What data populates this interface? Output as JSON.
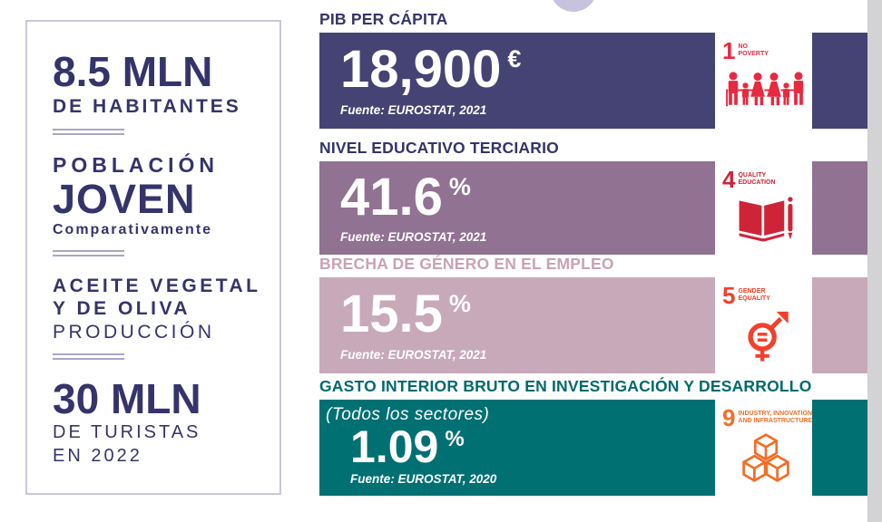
{
  "left_panel": {
    "text_color": "#35346a",
    "border_color": "#c9c8d9",
    "divider_color": "#a9a7c2",
    "blocks": [
      {
        "lines": [
          {
            "text": "8.5 MLN",
            "style": "big"
          },
          {
            "text": "DE HABITANTES",
            "style": "sub-bold"
          }
        ]
      },
      {
        "lines": [
          {
            "text": "POBLACIÓN",
            "style": "pre"
          },
          {
            "text": "JOVEN",
            "style": "big2"
          },
          {
            "text": "Comparativamente",
            "style": "small"
          }
        ]
      },
      {
        "lines": [
          {
            "text": "ACEITE VEGETAL",
            "style": "mid-bold"
          },
          {
            "text": "Y DE OLIVA",
            "style": "mid-bold"
          },
          {
            "text": "PRODUCCIÓN",
            "style": "mid-light"
          }
        ]
      },
      {
        "lines": [
          {
            "text": "30 MLN",
            "style": "big"
          },
          {
            "text": "DE TURISTAS",
            "style": "sub-light"
          },
          {
            "text": "EN 2022",
            "style": "sub-light"
          }
        ]
      }
    ]
  },
  "cards": [
    {
      "title": "PIB PER CÁPITA",
      "title_color": "#35346a",
      "bg": "#454373",
      "note": "",
      "value": "18,900",
      "unit": "€",
      "source": "Fuente: EUROSTAT, 2021",
      "sdg": {
        "number": "1",
        "label_lines": [
          "NO",
          "POVERTY"
        ],
        "color": "#e8293f",
        "icon": "no-poverty"
      }
    },
    {
      "title": "NIVEL EDUCATIVO TERCIARIO",
      "title_color": "#35346a",
      "bg": "#917292",
      "note": "",
      "value": "41.6",
      "unit": "%",
      "source": "Fuente: EUROSTAT, 2021",
      "sdg": {
        "number": "4",
        "label_lines": [
          "QUALITY",
          "EDUCATION"
        ],
        "color": "#cf2438",
        "icon": "quality-education"
      }
    },
    {
      "title": "BRECHA DE GÉNERO EN EL EMPLEO",
      "title_color": "#c9a2b6",
      "bg": "#c8a9ba",
      "note": "",
      "value": "15.5",
      "unit": "%",
      "source": "Fuente: EUROSTAT, 2021",
      "sdg": {
        "number": "5",
        "label_lines": [
          "GENDER",
          "EQUALITY"
        ],
        "color": "#f43f2a",
        "icon": "gender-equality"
      }
    },
    {
      "title": "GASTO INTERIOR BRUTO EN INVESTIGACIÓN Y DESARROLLO",
      "title_color": "#00696d",
      "bg": "#007073",
      "note": "(Todos los sectores)",
      "value": "1.09",
      "unit": "%",
      "source": "Fuente: EUROSTAT, 2020",
      "sdg": {
        "number": "9",
        "label_lines": [
          "INDUSTRY, INNOVATION",
          "AND INFRASTRUCTURE"
        ],
        "color": "#f06f28",
        "icon": "industry-innovation"
      }
    }
  ],
  "decor": {
    "top_circle_color": "#c7c3df",
    "side_bar_color": "#d3d2d5"
  }
}
